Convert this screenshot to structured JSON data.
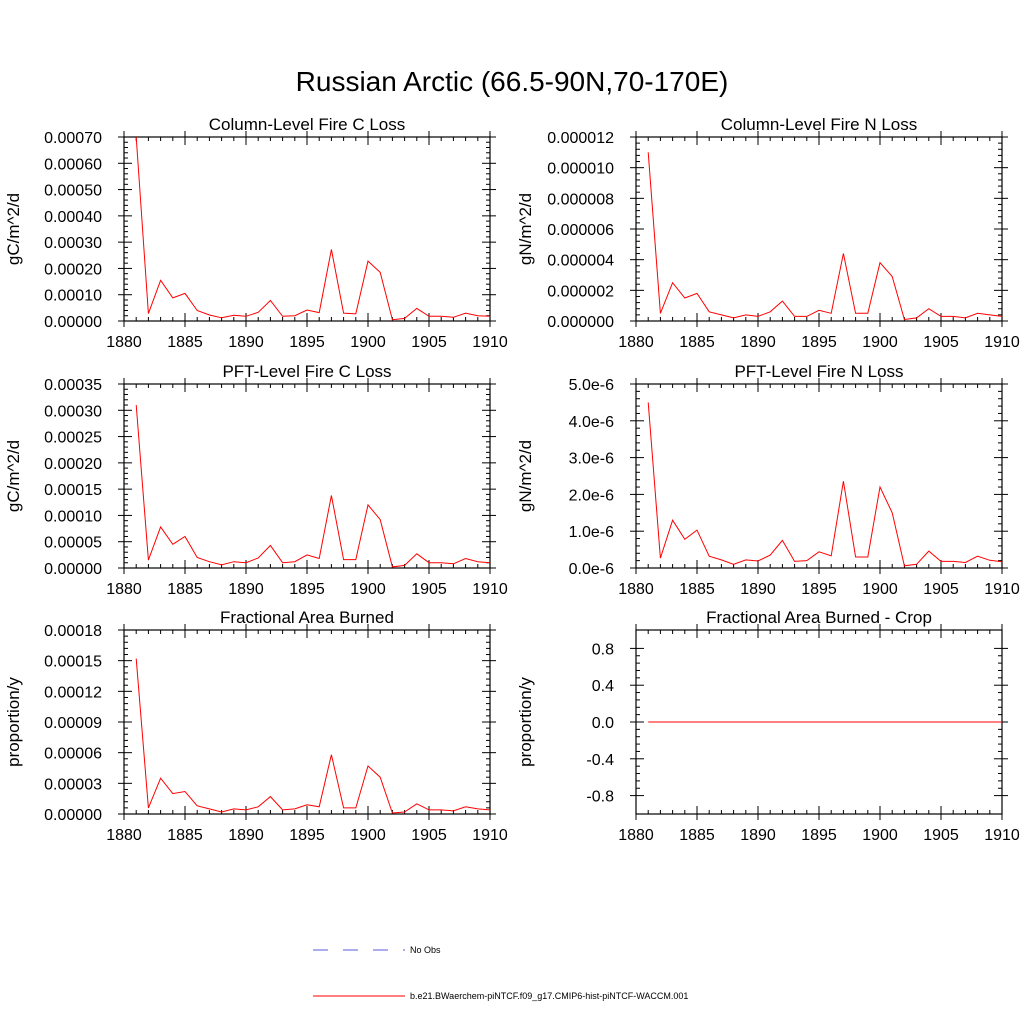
{
  "figure": {
    "title": "Russian Arctic (66.5-90N,70-170E)"
  },
  "legend": {
    "entries": [
      {
        "label": "No Obs",
        "color": "#5a5adc",
        "style": "dashed"
      },
      {
        "label": "b.e21.BWaerchem-piNTCF.f09_g17.CMIP6-hist-piNTCF-WACCM.001",
        "color": "#ff0000",
        "style": "solid"
      }
    ]
  },
  "chart_data": [
    {
      "type": "line",
      "title": "Column-Level Fire C Loss",
      "ylabel": "gC/m^2/d",
      "xlim": [
        1880,
        1910
      ],
      "ylim": [
        0,
        0.0007
      ],
      "xticks": [
        1880,
        1885,
        1890,
        1895,
        1900,
        1905,
        1910
      ],
      "xtick_labels": [
        "1880",
        "1885",
        "1890",
        "1895",
        "1900",
        "1905",
        "1910"
      ],
      "yticks": [
        0,
        0.0001,
        0.0002,
        0.0003,
        0.0004,
        0.0005,
        0.0006,
        0.0007
      ],
      "ytick_labels": [
        "0.00000",
        "0.00010",
        "0.00020",
        "0.00030",
        "0.00040",
        "0.00050",
        "0.00060",
        "0.00070"
      ],
      "series": [
        {
          "color": "#ff0000",
          "x": [
            1881,
            1882,
            1883,
            1884,
            1885,
            1886,
            1887,
            1888,
            1889,
            1890,
            1891,
            1892,
            1893,
            1894,
            1895,
            1896,
            1897,
            1898,
            1899,
            1900,
            1901,
            1902,
            1903,
            1904,
            1905,
            1906,
            1907,
            1908,
            1909,
            1910
          ],
          "y": [
            0.0007,
            2.8e-05,
            0.000155,
            8.8e-05,
            0.000105,
            4e-05,
            2.3e-05,
            1.2e-05,
            2.2e-05,
            1.8e-05,
            3.3e-05,
            7.8e-05,
            1.8e-05,
            2e-05,
            4.2e-05,
            3.2e-05,
            0.000272,
            3e-05,
            2.7e-05,
            0.000228,
            0.000185,
            5e-06,
            1e-05,
            4.8e-05,
            1.8e-05,
            1.8e-05,
            1.4e-05,
            3e-05,
            2e-05,
            1.8e-05
          ]
        }
      ]
    },
    {
      "type": "line",
      "title": "Column-Level Fire N Loss",
      "ylabel": "gN/m^2/d",
      "xlim": [
        1880,
        1910
      ],
      "ylim": [
        0,
        1.2e-05
      ],
      "xticks": [
        1880,
        1885,
        1890,
        1895,
        1900,
        1905,
        1910
      ],
      "xtick_labels": [
        "1880",
        "1885",
        "1890",
        "1895",
        "1900",
        "1905",
        "1910"
      ],
      "yticks": [
        0,
        2e-06,
        4e-06,
        6e-06,
        8e-06,
        1e-05,
        1.2e-05
      ],
      "ytick_labels": [
        "0.000000",
        "0.000002",
        "0.000004",
        "0.000006",
        "0.000008",
        "0.000010",
        "0.000012"
      ],
      "series": [
        {
          "color": "#ff0000",
          "x": [
            1881,
            1882,
            1883,
            1884,
            1885,
            1886,
            1887,
            1888,
            1889,
            1890,
            1891,
            1892,
            1893,
            1894,
            1895,
            1896,
            1897,
            1898,
            1899,
            1900,
            1901,
            1902,
            1903,
            1904,
            1905,
            1906,
            1907,
            1908,
            1909,
            1910
          ],
          "y": [
            1.1e-05,
            5e-07,
            2.5e-06,
            1.5e-06,
            1.8e-06,
            6e-07,
            4e-07,
            2e-07,
            4e-07,
            3e-07,
            6e-07,
            1.3e-06,
            3e-07,
            3e-07,
            7e-07,
            5e-07,
            4.4e-06,
            5e-07,
            5e-07,
            3.8e-06,
            2.9e-06,
            1e-07,
            2e-07,
            8e-07,
            3e-07,
            3e-07,
            2e-07,
            5e-07,
            4e-07,
            3e-07
          ]
        }
      ]
    },
    {
      "type": "line",
      "title": "PFT-Level Fire C Loss",
      "ylabel": "gC/m^2/d",
      "xlim": [
        1880,
        1910
      ],
      "ylim": [
        0,
        0.00035
      ],
      "xticks": [
        1880,
        1885,
        1890,
        1895,
        1900,
        1905,
        1910
      ],
      "xtick_labels": [
        "1880",
        "1885",
        "1890",
        "1895",
        "1900",
        "1905",
        "1910"
      ],
      "yticks": [
        0,
        5e-05,
        0.0001,
        0.00015,
        0.0002,
        0.00025,
        0.0003,
        0.00035
      ],
      "ytick_labels": [
        "0.00000",
        "0.00005",
        "0.00010",
        "0.00015",
        "0.00020",
        "0.00025",
        "0.00030",
        "0.00035"
      ],
      "series": [
        {
          "color": "#ff0000",
          "x": [
            1881,
            1882,
            1883,
            1884,
            1885,
            1886,
            1887,
            1888,
            1889,
            1890,
            1891,
            1892,
            1893,
            1894,
            1895,
            1896,
            1897,
            1898,
            1899,
            1900,
            1901,
            1902,
            1903,
            1904,
            1905,
            1906,
            1907,
            1908,
            1909,
            1910
          ],
          "y": [
            0.00031,
            1.5e-05,
            7.8e-05,
            4.5e-05,
            6e-05,
            2e-05,
            1.2e-05,
            6e-06,
            1.2e-05,
            1e-05,
            1.9e-05,
            4.3e-05,
            1e-05,
            1.2e-05,
            2.5e-05,
            1.8e-05,
            0.000138,
            1.6e-05,
            1.6e-05,
            0.00012,
            9.2e-05,
            2e-06,
            5e-06,
            2.7e-05,
            1e-05,
            1e-05,
            8e-06,
            1.8e-05,
            1.2e-05,
            1e-05
          ]
        }
      ]
    },
    {
      "type": "line",
      "title": "PFT-Level Fire N Loss",
      "ylabel": "gN/m^2/d",
      "xlim": [
        1880,
        1910
      ],
      "ylim": [
        0,
        5e-06
      ],
      "xticks": [
        1880,
        1885,
        1890,
        1895,
        1900,
        1905,
        1910
      ],
      "xtick_labels": [
        "1880",
        "1885",
        "1890",
        "1895",
        "1900",
        "1905",
        "1910"
      ],
      "yticks": [
        0,
        1e-06,
        2e-06,
        3e-06,
        4e-06,
        5e-06
      ],
      "ytick_labels": [
        "0.0e-6",
        "1.0e-6",
        "2.0e-6",
        "3.0e-6",
        "4.0e-6",
        "5.0e-6"
      ],
      "series": [
        {
          "color": "#ff0000",
          "x": [
            1881,
            1882,
            1883,
            1884,
            1885,
            1886,
            1887,
            1888,
            1889,
            1890,
            1891,
            1892,
            1893,
            1894,
            1895,
            1896,
            1897,
            1898,
            1899,
            1900,
            1901,
            1902,
            1903,
            1904,
            1905,
            1906,
            1907,
            1908,
            1909,
            1910
          ],
          "y": [
            4.5e-06,
            2.7e-07,
            1.3e-06,
            7.8e-07,
            1.03e-06,
            3.2e-07,
            2.2e-07,
            1e-07,
            2.2e-07,
            1.9e-07,
            3.5e-07,
            7.5e-07,
            1.8e-07,
            2e-07,
            4.4e-07,
            3.3e-07,
            2.36e-06,
            3e-07,
            3e-07,
            2.2e-06,
            1.5e-06,
            6e-08,
            1e-07,
            4.6e-07,
            1.8e-07,
            1.8e-07,
            1.5e-07,
            3.2e-07,
            2.1e-07,
            1.7e-07
          ]
        }
      ]
    },
    {
      "type": "line",
      "title": "Fractional Area Burned",
      "ylabel": "proportion/y",
      "xlim": [
        1880,
        1910
      ],
      "ylim": [
        0,
        0.00018
      ],
      "xticks": [
        1880,
        1885,
        1890,
        1895,
        1900,
        1905,
        1910
      ],
      "xtick_labels": [
        "1880",
        "1885",
        "1890",
        "1895",
        "1900",
        "1905",
        "1910"
      ],
      "yticks": [
        0,
        3e-05,
        6e-05,
        9e-05,
        0.00012,
        0.00015,
        0.00018
      ],
      "ytick_labels": [
        "0.00000",
        "0.00003",
        "0.00006",
        "0.00009",
        "0.00012",
        "0.00015",
        "0.00018"
      ],
      "series": [
        {
          "color": "#ff0000",
          "x": [
            1881,
            1882,
            1883,
            1884,
            1885,
            1886,
            1887,
            1888,
            1889,
            1890,
            1891,
            1892,
            1893,
            1894,
            1895,
            1896,
            1897,
            1898,
            1899,
            1900,
            1901,
            1902,
            1903,
            1904,
            1905,
            1906,
            1907,
            1908,
            1909,
            1910
          ],
          "y": [
            0.000152,
            6e-06,
            3.5e-05,
            2e-05,
            2.2e-05,
            8e-06,
            5e-06,
            2e-06,
            5e-06,
            4e-06,
            7e-06,
            1.7e-05,
            4e-06,
            5e-06,
            9e-06,
            7e-06,
            5.8e-05,
            6e-06,
            6e-06,
            4.7e-05,
            3.6e-05,
            1e-06,
            2e-06,
            1e-05,
            4e-06,
            4e-06,
            3e-06,
            7e-06,
            5e-06,
            4e-06
          ]
        }
      ]
    },
    {
      "type": "line",
      "title": "Fractional Area Burned - Crop",
      "ylabel": "proportion/y",
      "xlim": [
        1880,
        1910
      ],
      "ylim": [
        -1,
        1
      ],
      "xticks": [
        1880,
        1885,
        1890,
        1895,
        1900,
        1905,
        1910
      ],
      "xtick_labels": [
        "1880",
        "1885",
        "1890",
        "1895",
        "1900",
        "1905",
        "1910"
      ],
      "yticks": [
        -0.8,
        -0.4,
        0,
        0.4,
        0.8
      ],
      "ytick_labels": [
        "-0.8",
        "-0.4",
        "0.0",
        "0.4",
        "0.8"
      ],
      "series": [
        {
          "color": "#ff0000",
          "x": [
            1881,
            1882,
            1883,
            1884,
            1885,
            1886,
            1887,
            1888,
            1889,
            1890,
            1891,
            1892,
            1893,
            1894,
            1895,
            1896,
            1897,
            1898,
            1899,
            1900,
            1901,
            1902,
            1903,
            1904,
            1905,
            1906,
            1907,
            1908,
            1909,
            1910
          ],
          "y": [
            0,
            0,
            0,
            0,
            0,
            0,
            0,
            0,
            0,
            0,
            0,
            0,
            0,
            0,
            0,
            0,
            0,
            0,
            0,
            0,
            0,
            0,
            0,
            0,
            0,
            0,
            0,
            0,
            0,
            0
          ]
        }
      ]
    }
  ]
}
